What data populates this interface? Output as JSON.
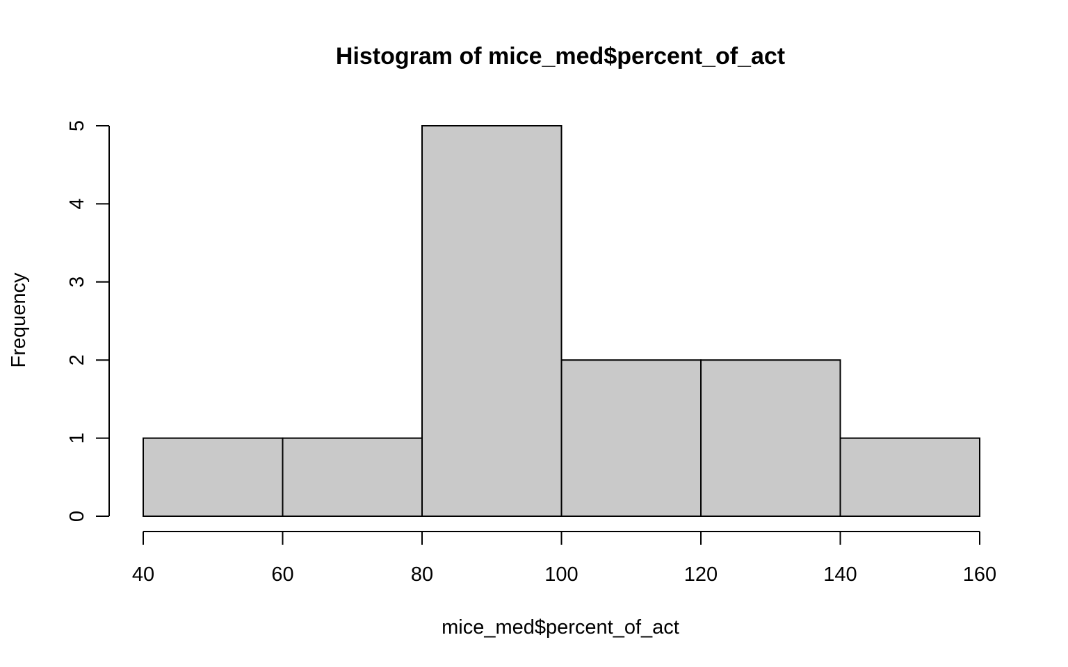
{
  "chart_data": {
    "type": "bar",
    "title": "Histogram of mice_med$percent_of_act",
    "xlabel": "mice_med$percent_of_act",
    "ylabel": "Frequency",
    "bins": [
      {
        "from": 40,
        "to": 60,
        "count": 1
      },
      {
        "from": 60,
        "to": 80,
        "count": 1
      },
      {
        "from": 80,
        "to": 100,
        "count": 5
      },
      {
        "from": 100,
        "to": 120,
        "count": 2
      },
      {
        "from": 120,
        "to": 140,
        "count": 2
      },
      {
        "from": 140,
        "to": 160,
        "count": 1
      }
    ],
    "xticks": [
      "40",
      "60",
      "80",
      "100",
      "120",
      "140",
      "160"
    ],
    "yticks": [
      "0",
      "1",
      "2",
      "3",
      "4",
      "5"
    ],
    "xlim": [
      40,
      160
    ],
    "ylim": [
      0,
      5
    ],
    "grid": false,
    "legend": "none",
    "bar_color": "#c9c9c9",
    "edge_color": "#000000"
  }
}
